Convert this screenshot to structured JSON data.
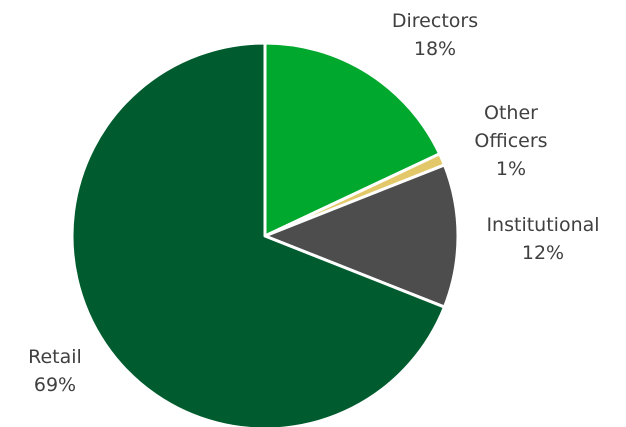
{
  "chart_data": {
    "type": "pie",
    "start_angle_deg": 0,
    "direction": "clockwise",
    "slices": [
      {
        "label": "Directors",
        "value": 18,
        "value_label": "18%",
        "color": "#00a82d"
      },
      {
        "label": "Other Officers",
        "value": 1,
        "value_label": "1%",
        "color": "#e3c86a"
      },
      {
        "label": "Institutional",
        "value": 12,
        "value_label": "12%",
        "color": "#4d4d4d"
      },
      {
        "label": "Retail",
        "value": 69,
        "value_label": "69%",
        "color": "#005c2e"
      }
    ],
    "legend": "none",
    "slice_border_color": "#ffffff"
  }
}
